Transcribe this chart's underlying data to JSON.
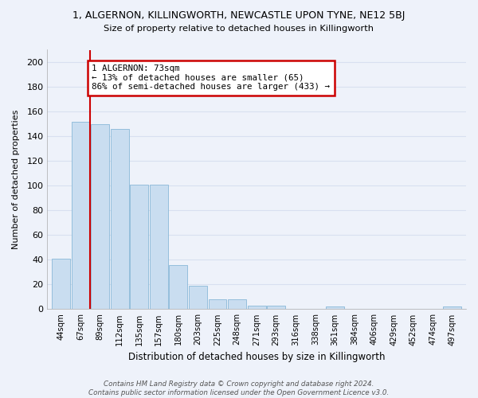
{
  "title": "1, ALGERNON, KILLINGWORTH, NEWCASTLE UPON TYNE, NE12 5BJ",
  "subtitle": "Size of property relative to detached houses in Killingworth",
  "xlabel": "Distribution of detached houses by size in Killingworth",
  "ylabel": "Number of detached properties",
  "bar_color": "#c9ddf0",
  "bar_edge_color": "#89b8d8",
  "background_color": "#eef2fa",
  "grid_color": "#d8e0f0",
  "categories": [
    "44sqm",
    "67sqm",
    "89sqm",
    "112sqm",
    "135sqm",
    "157sqm",
    "180sqm",
    "203sqm",
    "225sqm",
    "248sqm",
    "271sqm",
    "293sqm",
    "316sqm",
    "338sqm",
    "361sqm",
    "384sqm",
    "406sqm",
    "429sqm",
    "452sqm",
    "474sqm",
    "497sqm"
  ],
  "values": [
    41,
    152,
    150,
    146,
    101,
    101,
    36,
    19,
    8,
    8,
    3,
    3,
    0,
    0,
    2,
    0,
    0,
    0,
    0,
    0,
    2
  ],
  "ylim": [
    0,
    210
  ],
  "yticks": [
    0,
    20,
    40,
    60,
    80,
    100,
    120,
    140,
    160,
    180,
    200
  ],
  "line_x_index": 1.48,
  "annotation_text": "1 ALGERNON: 73sqm\n← 13% of detached houses are smaller (65)\n86% of semi-detached houses are larger (433) →",
  "annotation_box_color": "#ffffff",
  "annotation_box_edge_color": "#cc0000",
  "line_color": "#cc0000",
  "footer": "Contains HM Land Registry data © Crown copyright and database right 2024.\nContains public sector information licensed under the Open Government Licence v3.0."
}
